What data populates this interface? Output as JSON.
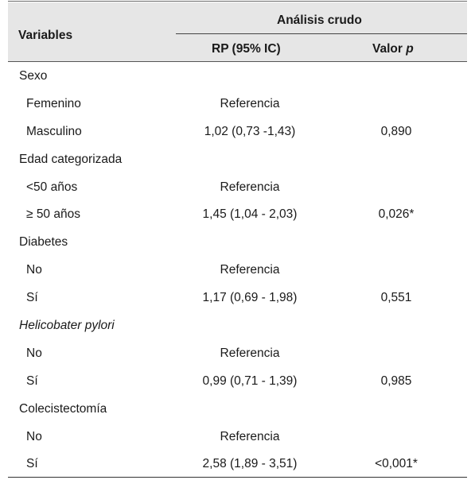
{
  "header": {
    "variables_label": "Variables",
    "group_label": "Análisis crudo",
    "rp_label": "RP (95% IC)",
    "valor_label": "Valor",
    "p_label": "p"
  },
  "rows": [
    {
      "variable": "Sexo",
      "level": "group",
      "rp": "",
      "p": ""
    },
    {
      "variable": "Femenino",
      "level": "sub",
      "rp": "Referencia",
      "p": ""
    },
    {
      "variable": "Masculino",
      "level": "sub",
      "rp": "1,02 (0,73 -1,43)",
      "p": "0,890"
    },
    {
      "variable": "Edad categorizada",
      "level": "group",
      "rp": "",
      "p": ""
    },
    {
      "variable": "<50 años",
      "level": "sub",
      "rp": "Referencia",
      "p": ""
    },
    {
      "variable": "≥ 50 años",
      "level": "sub",
      "rp": "1,45 (1,04 - 2,03)",
      "p": "0,026*"
    },
    {
      "variable": "Diabetes",
      "level": "group",
      "rp": "",
      "p": ""
    },
    {
      "variable": "No",
      "level": "sub",
      "rp": "Referencia",
      "p": ""
    },
    {
      "variable": "Sí",
      "level": "sub",
      "rp": "1,17 (0,69 - 1,98)",
      "p": "0,551"
    },
    {
      "variable": "Helicobater pylori",
      "level": "group",
      "italic": true,
      "rp": "",
      "p": ""
    },
    {
      "variable": "No",
      "level": "sub",
      "rp": "Referencia",
      "p": ""
    },
    {
      "variable": "Sí",
      "level": "sub",
      "rp": "0,99 (0,71 - 1,39)",
      "p": "0,985"
    },
    {
      "variable": "Colecistectomía",
      "level": "group",
      "rp": "",
      "p": ""
    },
    {
      "variable": "No",
      "level": "sub",
      "rp": "Referencia",
      "p": ""
    },
    {
      "variable": "Sí",
      "level": "sub",
      "rp": "2,58 (1,89 - 3,51)",
      "p": "<0,001*"
    }
  ]
}
